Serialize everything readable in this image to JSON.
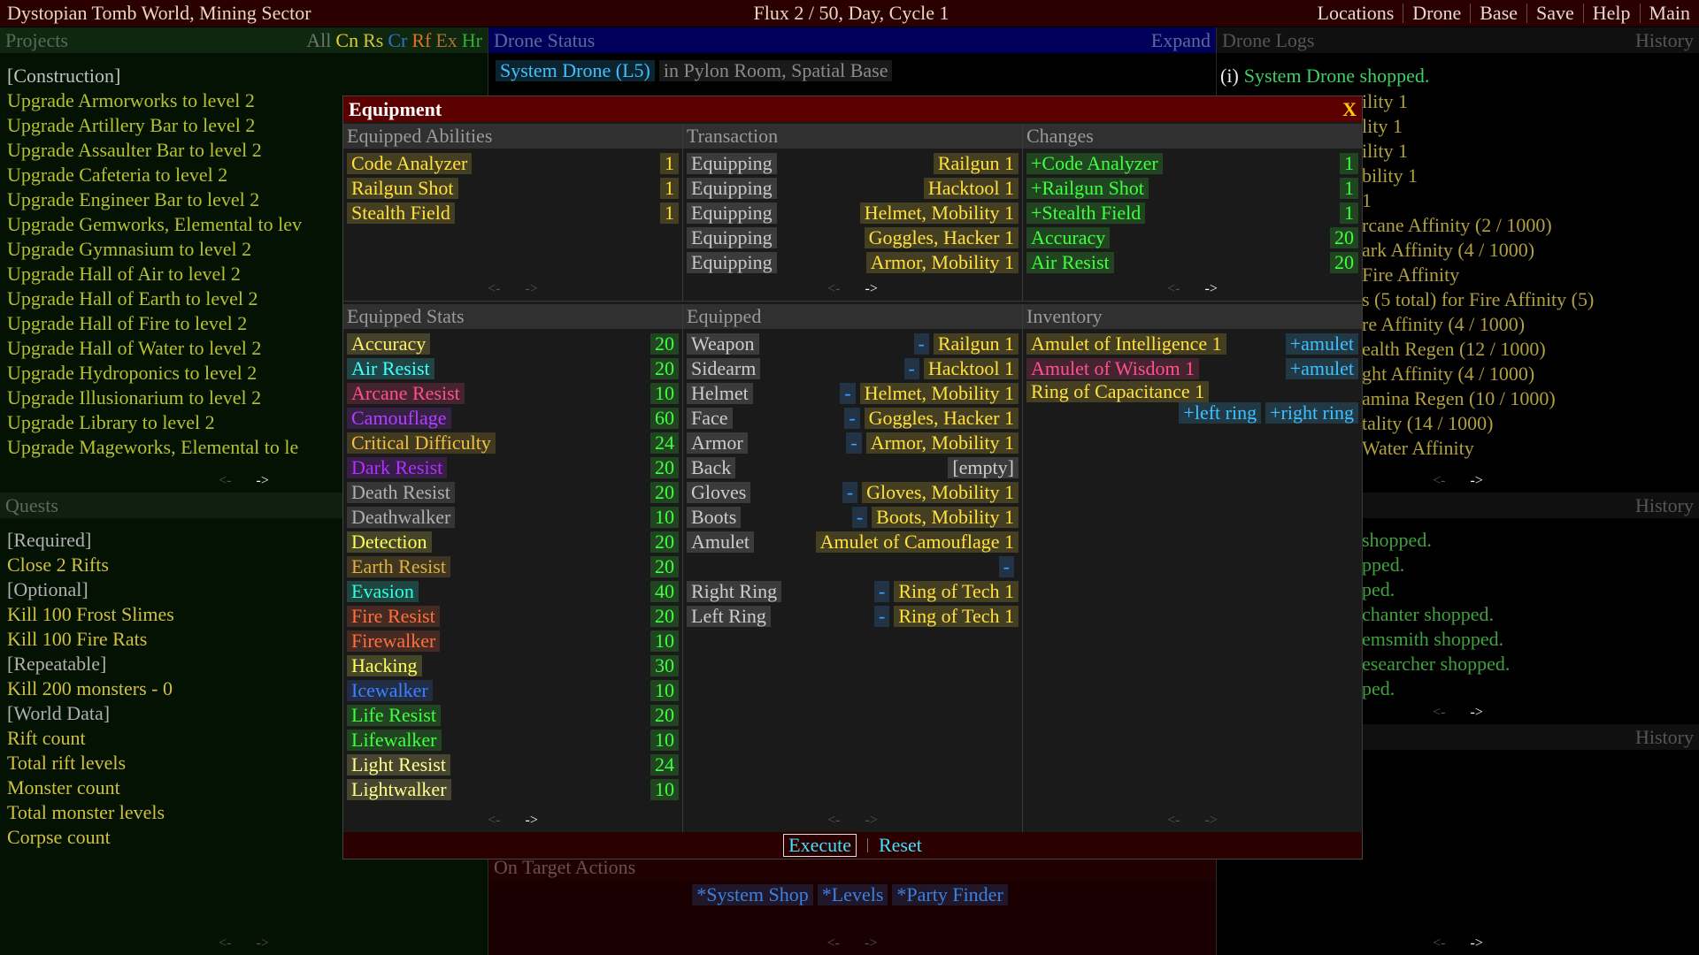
{
  "header": {
    "title": "Dystopian Tomb World, Mining Sector",
    "status": "Flux 2 / 50, Day, Cycle 1",
    "menu": [
      "Locations",
      "Drone",
      "Base",
      "Save",
      "Help",
      "Main"
    ]
  },
  "pager": {
    "prev": "<-",
    "next": "->"
  },
  "projects": {
    "title": "Projects",
    "filters": [
      {
        "label": "All",
        "color": "#6a756a"
      },
      {
        "label": "Cn",
        "color": "#e0d020"
      },
      {
        "label": "Rs",
        "color": "#d0c040"
      },
      {
        "label": "Cr",
        "color": "#3070d0"
      },
      {
        "label": "Rf",
        "color": "#e07020"
      },
      {
        "label": "Ex",
        "color": "#b07030"
      },
      {
        "label": "Hr",
        "color": "#30b030"
      }
    ],
    "items": [
      "[Construction]",
      "Upgrade Armorworks to level 2",
      "Upgrade Artillery Bar to level 2",
      "Upgrade Assaulter Bar to level 2",
      "Upgrade Cafeteria to level 2",
      "Upgrade Engineer Bar to level 2",
      "Upgrade Gemworks, Elemental to lev",
      "Upgrade Gymnasium to level 2",
      "Upgrade Hall of Air to level 2",
      "Upgrade Hall of Earth to level 2",
      "Upgrade Hall of Fire to level 2",
      "Upgrade Hall of Water to level 2",
      "Upgrade Hydroponics to level 2",
      "Upgrade Illusionarium to level 2",
      "Upgrade Library to level 2",
      "Upgrade Mageworks, Elemental to le"
    ]
  },
  "quests": {
    "title": "Quests",
    "items": [
      "[Required]",
      "Close 2 Rifts",
      "[Optional]",
      "Kill 100 Frost Slimes",
      "Kill 100 Fire Rats",
      "[Repeatable]",
      "Kill 200 monsters - 0",
      "[World Data]",
      "Rift count",
      "Total rift levels",
      "Monster count",
      "Total monster levels",
      "Corpse count"
    ]
  },
  "drone_status": {
    "title": "Drone Status",
    "expand": "Expand",
    "drone": "System Drone (L5)",
    "location": "in Pylon Room, Spatial Base"
  },
  "on_target": {
    "title": "On Target Actions",
    "actions": [
      "*System Shop",
      "*Levels",
      "*Party Finder"
    ]
  },
  "drone_logs": {
    "title": "Drone Logs",
    "history": "History",
    "first": {
      "icon": "(i)",
      "text": "System Drone shopped."
    },
    "fragments": [
      "ility 1",
      "lity 1",
      "ility 1",
      "bility 1",
      "1",
      "rcane Affinity (2 / 1000)",
      "ark Affinity (4 / 1000)",
      "Fire Affinity",
      "s (5 total) for Fire Affinity (5)",
      "re Affinity (4 / 1000)",
      "ealth Regen (12 / 1000)",
      "ght Affinity (4 / 1000)",
      "amina Regen (10 / 1000)",
      "tality (14 / 1000)",
      "Water Affinity"
    ]
  },
  "history_2": {
    "title": "History",
    "fragments": [
      "shopped.",
      "pped.",
      "ped.",
      "chanter shopped.",
      "emsmith shopped.",
      "esearcher shopped.",
      "ped."
    ]
  },
  "history_3": {
    "title": "History"
  },
  "equipment": {
    "title": "Equipment",
    "close": "X",
    "abilities": {
      "title": "Equipped Abilities",
      "color": "#ffe040",
      "items": [
        {
          "name": "Code Analyzer",
          "value": 1
        },
        {
          "name": "Railgun Shot",
          "value": 1
        },
        {
          "name": "Stealth Field",
          "value": 1
        }
      ]
    },
    "transaction": {
      "title": "Transaction",
      "color": "#ffe040",
      "items": [
        {
          "action": "Equipping",
          "item": "Railgun 1"
        },
        {
          "action": "Equipping",
          "item": "Hacktool 1"
        },
        {
          "action": "Equipping",
          "item": "Helmet, Mobility 1"
        },
        {
          "action": "Equipping",
          "item": "Goggles, Hacker 1"
        },
        {
          "action": "Equipping",
          "item": "Armor, Mobility 1"
        }
      ]
    },
    "changes": {
      "title": "Changes",
      "color": "#40ff40",
      "items": [
        {
          "name": "+Code Analyzer",
          "value": 1
        },
        {
          "name": "+Railgun Shot",
          "value": 1
        },
        {
          "name": "+Stealth Field",
          "value": 1
        },
        {
          "name": "Accuracy",
          "value": 20
        },
        {
          "name": "Air Resist",
          "value": 20
        }
      ]
    },
    "stats": {
      "title": "Equipped Stats",
      "value_color": "#40ff40",
      "items": [
        {
          "name": "Accuracy",
          "value": 20,
          "color": "#fff070"
        },
        {
          "name": "Air Resist",
          "value": 20,
          "color": "#40ffff"
        },
        {
          "name": "Arcane Resist",
          "value": 10,
          "color": "#ff5090"
        },
        {
          "name": "Camouflage",
          "value": 60,
          "color": "#b040ff"
        },
        {
          "name": "Critical Difficulty",
          "value": 24,
          "color": "#f0c040"
        },
        {
          "name": "Dark Resist",
          "value": 20,
          "color": "#b030ff"
        },
        {
          "name": "Death Resist",
          "value": 20,
          "color": "#b0b0b0"
        },
        {
          "name": "Deathwalker",
          "value": 10,
          "color": "#b0b0b0"
        },
        {
          "name": "Detection",
          "value": 20,
          "color": "#ffff60"
        },
        {
          "name": "Earth Resist",
          "value": 20,
          "color": "#e0b040"
        },
        {
          "name": "Evasion",
          "value": 40,
          "color": "#30ffe0"
        },
        {
          "name": "Fire Resist",
          "value": 20,
          "color": "#ff7040"
        },
        {
          "name": "Firewalker",
          "value": 10,
          "color": "#ff7040"
        },
        {
          "name": "Hacking",
          "value": 30,
          "color": "#ffff60"
        },
        {
          "name": "Icewalker",
          "value": 10,
          "color": "#4080ff"
        },
        {
          "name": "Life Resist",
          "value": 20,
          "color": "#40ff40"
        },
        {
          "name": "Lifewalker",
          "value": 10,
          "color": "#40ff40"
        },
        {
          "name": "Light Resist",
          "value": 24,
          "color": "#ffff90"
        },
        {
          "name": "Lightwalker",
          "value": 10,
          "color": "#ffff90"
        }
      ]
    },
    "equipped": {
      "title": "Equipped",
      "color": "#ffe040",
      "slots": [
        {
          "slot": "Weapon",
          "remove": "-",
          "item": "Railgun 1"
        },
        {
          "slot": "Sidearm",
          "remove": "-",
          "item": "Hacktool 1"
        },
        {
          "slot": "Helmet",
          "remove": "-",
          "item": "Helmet, Mobility 1"
        },
        {
          "slot": "Face",
          "remove": "-",
          "item": "Goggles, Hacker 1"
        },
        {
          "slot": "Armor",
          "remove": "-",
          "item": "Armor, Mobility 1"
        },
        {
          "slot": "Back",
          "item": "[empty]",
          "color": "#cccccc"
        },
        {
          "slot": "Gloves",
          "remove": "-",
          "item": "Gloves, Mobility 1"
        },
        {
          "slot": "Boots",
          "remove": "-",
          "item": "Boots, Mobility 1"
        },
        {
          "slot": "Amulet",
          "item": "Amulet of Camouflage 1"
        },
        {
          "remove": "-"
        },
        {
          "slot": "Right Ring",
          "remove": "-",
          "item": "Ring of Tech 1"
        },
        {
          "slot": "Left Ring",
          "remove": "-",
          "item": "Ring of Tech 1"
        }
      ]
    },
    "inventory": {
      "title": "Inventory",
      "items": [
        {
          "name": "Amulet of Intelligence 1",
          "color": "#ffe040",
          "actions": [
            "+amulet"
          ]
        },
        {
          "name": "Amulet of Wisdom 1",
          "color": "#ff5090",
          "actions": [
            "+amulet"
          ]
        },
        {
          "name": "Ring of Capacitance 1",
          "color": "#ffe040",
          "actions": [
            "+left ring",
            "+right ring"
          ]
        }
      ]
    },
    "execute": "Execute",
    "reset": "Reset"
  }
}
